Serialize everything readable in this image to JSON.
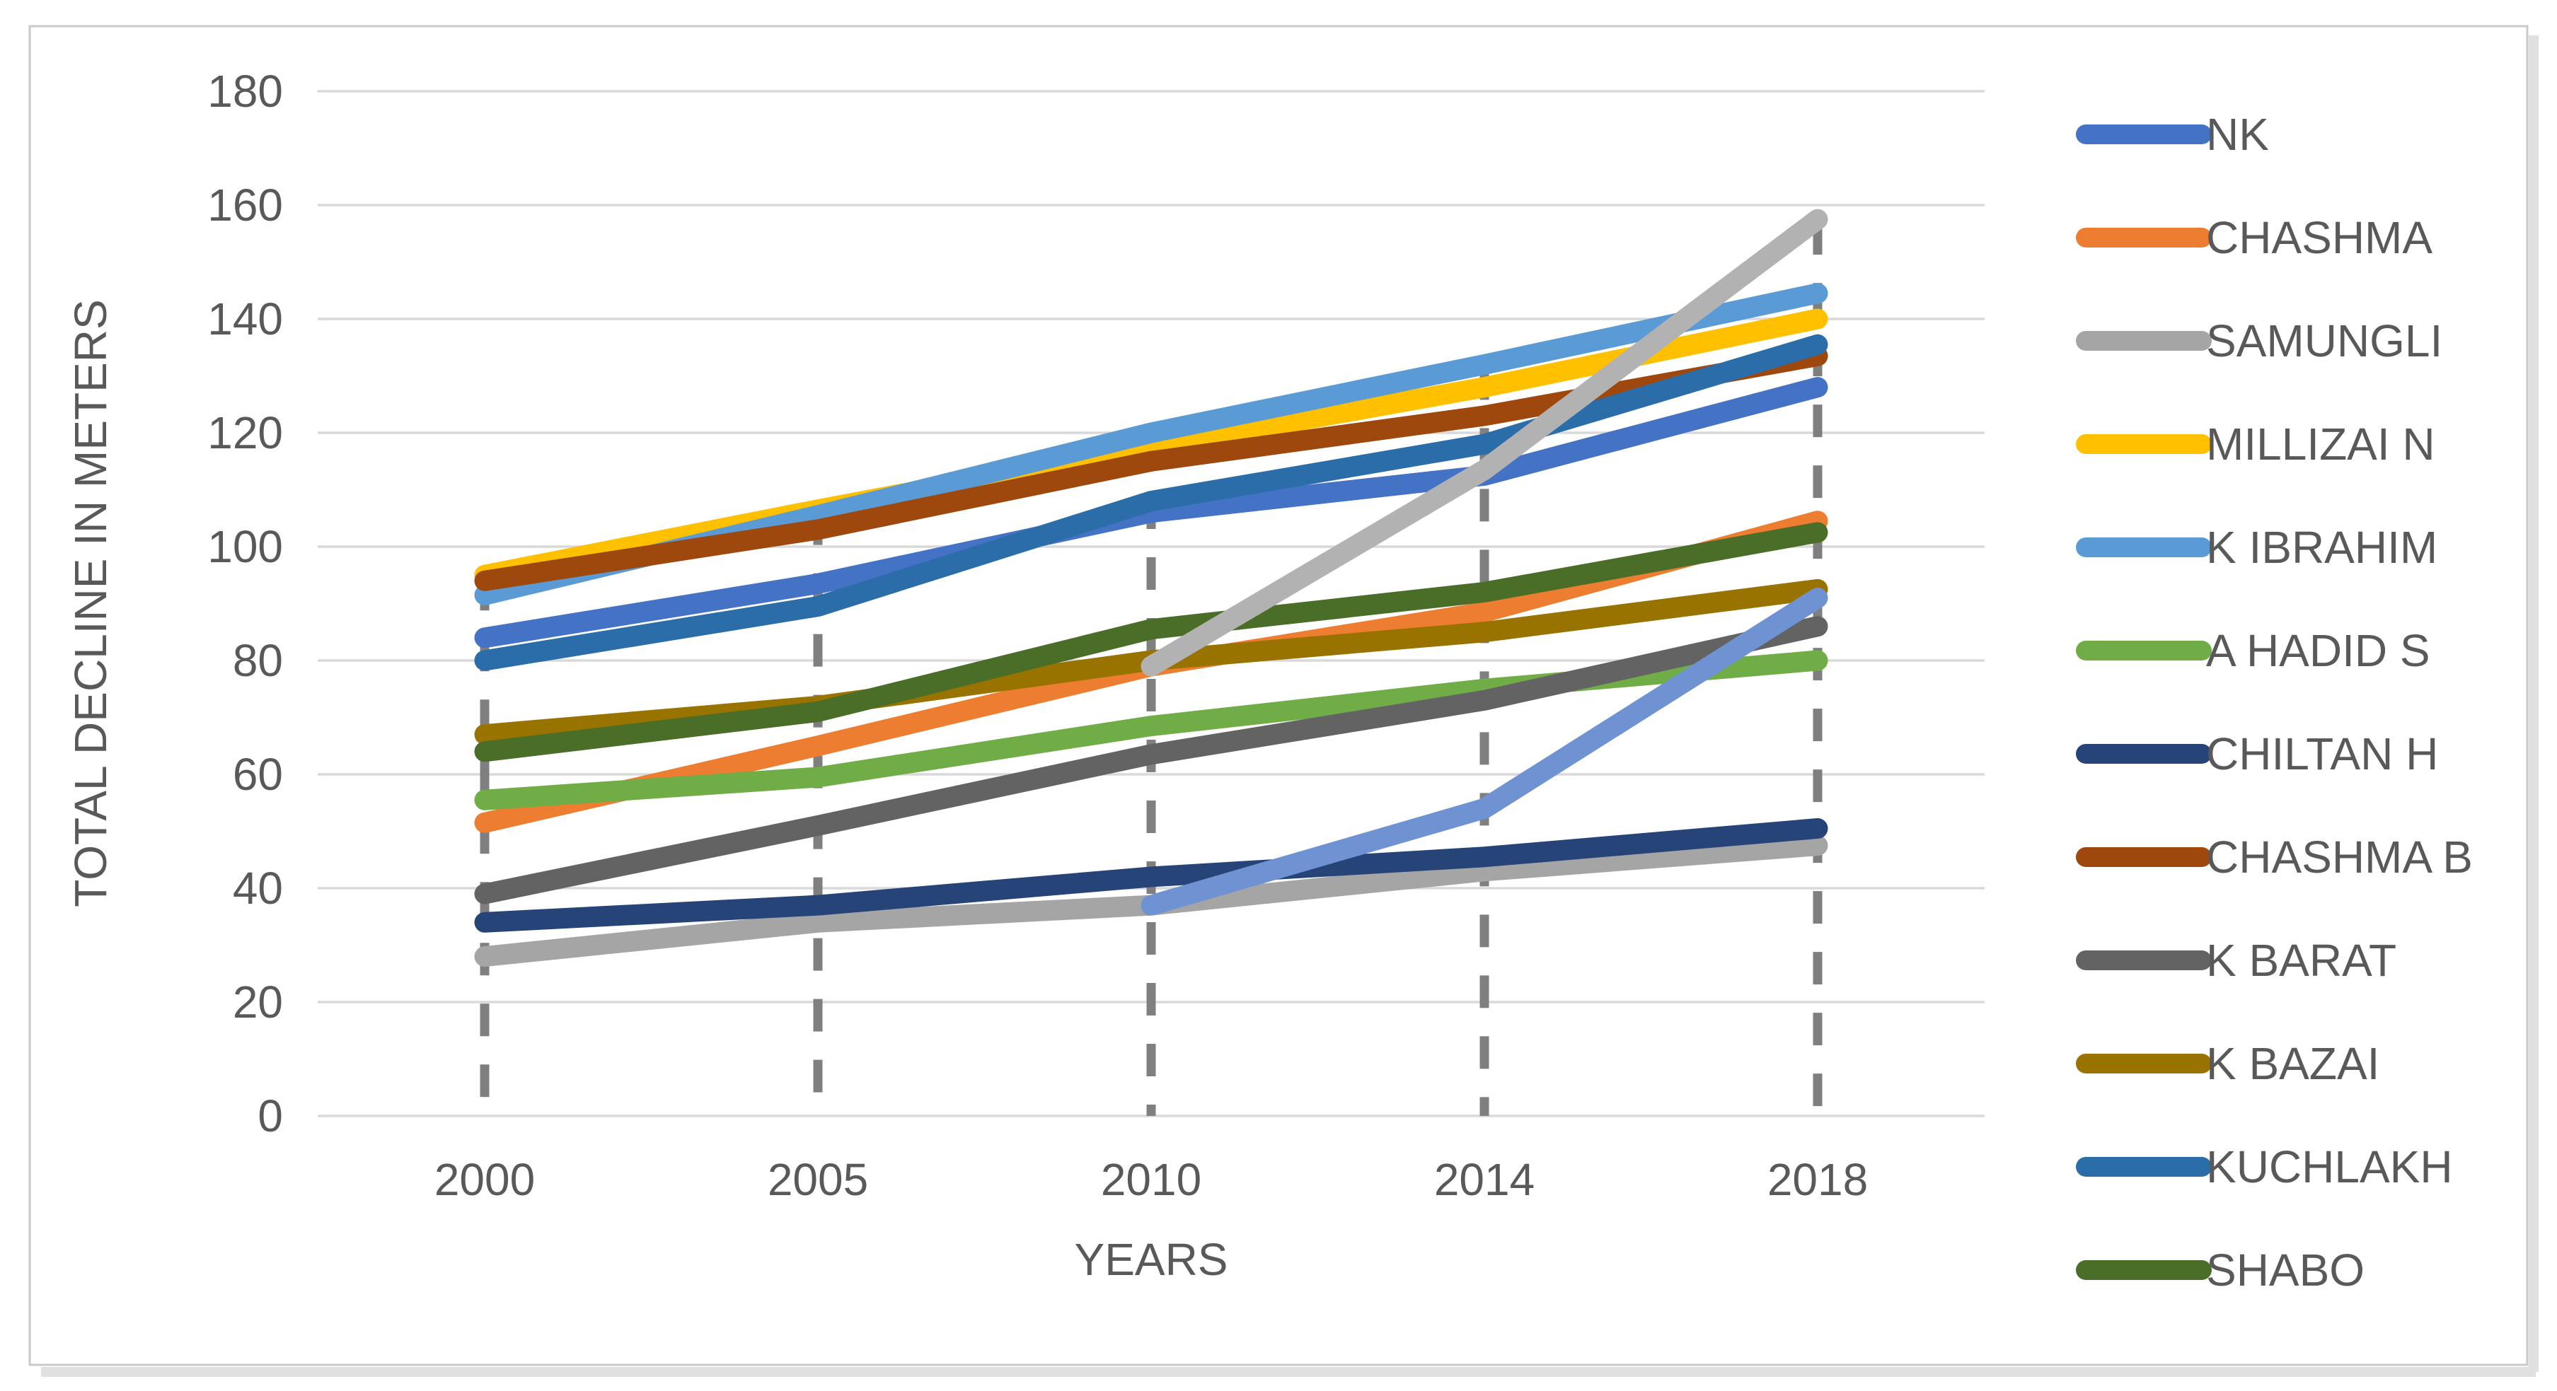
{
  "chart_data": {
    "type": "line",
    "title": "",
    "xlabel": "YEARS",
    "ylabel": "TOTAL DECLINE IN METERS",
    "x_categories": [
      "2000",
      "2005",
      "2010",
      "2014",
      "2018"
    ],
    "ylim": [
      0,
      180
    ],
    "y_tick_step": 20,
    "y_tick_labels": [
      "0",
      "20",
      "40",
      "60",
      "80",
      "100",
      "120",
      "140",
      "160",
      "180"
    ],
    "grid": true,
    "legend_position": "right",
    "drop_lines": "dashed vertical line at each category from topmost series point down to x-axis",
    "series": [
      {
        "name": "NK",
        "color": "#4472C4",
        "in_legend": true,
        "values": [
          84,
          93.5,
          106,
          112.5,
          128
        ]
      },
      {
        "name": "CHASHMA",
        "color": "#ED7D31",
        "in_legend": true,
        "values": [
          51.5,
          65,
          79,
          88.5,
          104.5
        ]
      },
      {
        "name": "SAMUNGLI",
        "color": "#A5A5A5",
        "in_legend": true,
        "values": [
          28,
          34,
          37,
          43,
          47.5
        ]
      },
      {
        "name": "MILLIZAI N",
        "color": "#FFC000",
        "in_legend": true,
        "values": [
          95,
          106.5,
          117.5,
          128,
          140
        ]
      },
      {
        "name": "K IBRAHIM",
        "color": "#5B9BD5",
        "in_legend": true,
        "values": [
          91.5,
          105.5,
          120,
          132,
          144.5
        ]
      },
      {
        "name": "A HADID S",
        "color": "#70AD47",
        "in_legend": true,
        "values": [
          55.5,
          59.5,
          68.5,
          75,
          80
        ]
      },
      {
        "name": "CHILTAN H",
        "color": "#264478",
        "in_legend": true,
        "values": [
          34,
          37,
          42,
          45.5,
          50.5
        ]
      },
      {
        "name": "CHASHMA B",
        "color": "#9E480E",
        "in_legend": true,
        "values": [
          94,
          103,
          115,
          123,
          133.5
        ]
      },
      {
        "name": "K BARAT",
        "color": "#636363",
        "in_legend": true,
        "values": [
          39,
          51,
          63.5,
          73,
          86
        ]
      },
      {
        "name": "K BAZAI",
        "color": "#997300",
        "in_legend": true,
        "values": [
          67,
          72,
          80,
          85,
          92.5
        ]
      },
      {
        "name": "KUCHLAKH",
        "color": "#2B6DA8",
        "in_legend": true,
        "values": [
          80,
          89.5,
          108,
          118,
          135.5
        ]
      },
      {
        "name": "SHABO",
        "color": "#4A6E28",
        "in_legend": true,
        "values": [
          64,
          71,
          85.5,
          92,
          102.5
        ]
      },
      {
        "name": "",
        "color": "#6F93D2",
        "in_legend": false,
        "values": [
          null,
          null,
          37,
          54,
          91
        ]
      },
      {
        "name": "",
        "color": "#B2B2B2",
        "in_legend": false,
        "values": [
          null,
          null,
          79,
          113.5,
          157.5
        ]
      }
    ]
  },
  "colors": {
    "background": "#FFFFFF",
    "axis_text": "#595959",
    "gridline": "#D9D9D9",
    "drop_line": "#7F7F7F",
    "border": "#C9C9C9",
    "border_shadow": "#E0E0E0"
  }
}
